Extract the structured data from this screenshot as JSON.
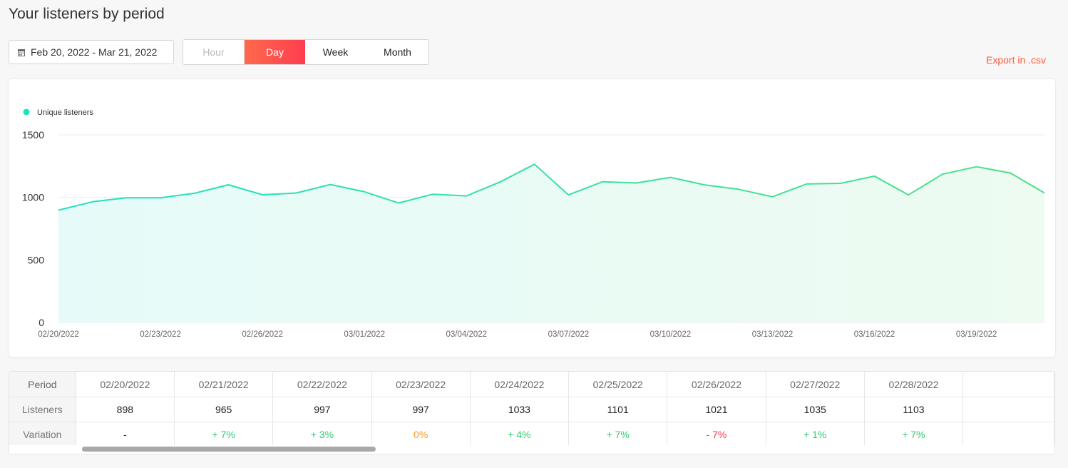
{
  "header": {
    "title": "Your listeners by period"
  },
  "controls": {
    "date_range": "Feb 20, 2022 - Mar 21, 2022",
    "periods": [
      {
        "label": "Hour",
        "state": "disabled"
      },
      {
        "label": "Day",
        "state": "active"
      },
      {
        "label": "Week",
        "state": "normal"
      },
      {
        "label": "Month",
        "state": "normal"
      }
    ],
    "export_label": "Export in .csv"
  },
  "colors": {
    "accent": "#ff4a4d",
    "line_start": "#1de3c1",
    "line_end": "#4ee085",
    "positive": "#2ecc71",
    "negative": "#ff3355",
    "zero": "#ff9a1f"
  },
  "chart_data": {
    "type": "area",
    "legend": [
      {
        "name": "Unique listeners",
        "color": "#1de3c1"
      }
    ],
    "legend_position": "top-left",
    "ylim": [
      0,
      1500
    ],
    "yticks": [
      "0",
      "500",
      "1000",
      "1500"
    ],
    "grid": true,
    "x_tick_labels": [
      "02/20/2022",
      "02/23/2022",
      "02/26/2022",
      "03/01/2022",
      "03/04/2022",
      "03/07/2022",
      "03/10/2022",
      "03/13/2022",
      "03/16/2022",
      "03/19/2022"
    ],
    "x": [
      "02/20/2022",
      "02/21/2022",
      "02/22/2022",
      "02/23/2022",
      "02/24/2022",
      "02/25/2022",
      "02/26/2022",
      "02/27/2022",
      "02/28/2022",
      "03/01/2022",
      "03/02/2022",
      "03/03/2022",
      "03/04/2022",
      "03/05/2022",
      "03/06/2022",
      "03/07/2022",
      "03/08/2022",
      "03/09/2022",
      "03/10/2022",
      "03/11/2022",
      "03/12/2022",
      "03/13/2022",
      "03/14/2022",
      "03/15/2022",
      "03/16/2022",
      "03/17/2022",
      "03/18/2022",
      "03/19/2022",
      "03/20/2022",
      "03/21/2022"
    ],
    "series": [
      {
        "name": "Unique listeners",
        "values": [
          898,
          965,
          997,
          997,
          1033,
          1101,
          1021,
          1035,
          1103,
          1045,
          955,
          1025,
          1012,
          1125,
          1265,
          1020,
          1125,
          1115,
          1160,
          1100,
          1065,
          1005,
          1107,
          1112,
          1170,
          1020,
          1185,
          1245,
          1195,
          1035
        ]
      }
    ]
  },
  "table": {
    "row_labels": {
      "period": "Period",
      "listeners": "Listeners",
      "variation": "Variation"
    },
    "columns": [
      {
        "period": "02/20/2022",
        "listeners": "898",
        "variation": "-",
        "trend": "neutral"
      },
      {
        "period": "02/21/2022",
        "listeners": "965",
        "variation": "+ 7%",
        "trend": "pos"
      },
      {
        "period": "02/22/2022",
        "listeners": "997",
        "variation": "+ 3%",
        "trend": "pos"
      },
      {
        "period": "02/23/2022",
        "listeners": "997",
        "variation": "0%",
        "trend": "zero"
      },
      {
        "period": "02/24/2022",
        "listeners": "1033",
        "variation": "+ 4%",
        "trend": "pos"
      },
      {
        "period": "02/25/2022",
        "listeners": "1101",
        "variation": "+ 7%",
        "trend": "pos"
      },
      {
        "period": "02/26/2022",
        "listeners": "1021",
        "variation": "- 7%",
        "trend": "neg"
      },
      {
        "period": "02/27/2022",
        "listeners": "1035",
        "variation": "+ 1%",
        "trend": "pos"
      },
      {
        "period": "02/28/2022",
        "listeners": "1103",
        "variation": "+ 7%",
        "trend": "pos"
      }
    ],
    "scroll_position": 0.0
  }
}
